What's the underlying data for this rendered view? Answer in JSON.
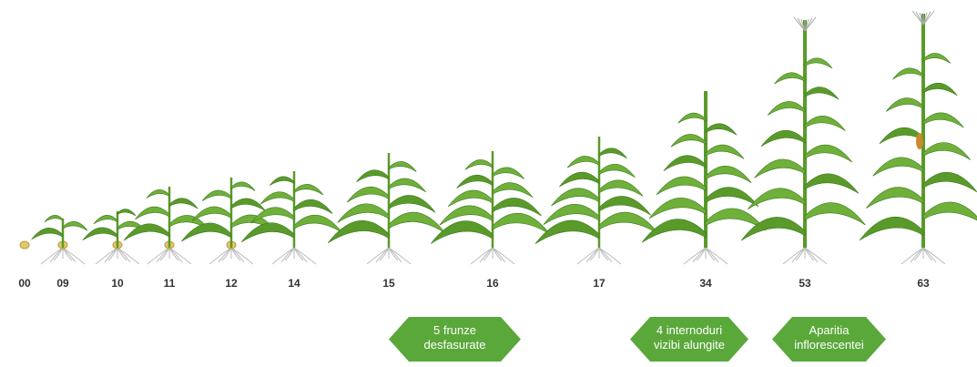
{
  "stages": [
    {
      "label": "00"
    },
    {
      "label": "09"
    },
    {
      "label": "10"
    },
    {
      "label": "11"
    },
    {
      "label": "12"
    },
    {
      "label": "14"
    },
    {
      "label": "15"
    },
    {
      "label": "16"
    },
    {
      "label": "17"
    },
    {
      "label": "34"
    },
    {
      "label": "53"
    },
    {
      "label": "63"
    }
  ],
  "badges": [
    {
      "lines": [
        "5 frunze",
        "desfasurate"
      ]
    },
    {
      "lines": [
        "4 internoduri",
        "vizibi alungite"
      ]
    },
    {
      "lines": [
        "Aparitia",
        "inflorescentei"
      ]
    }
  ]
}
